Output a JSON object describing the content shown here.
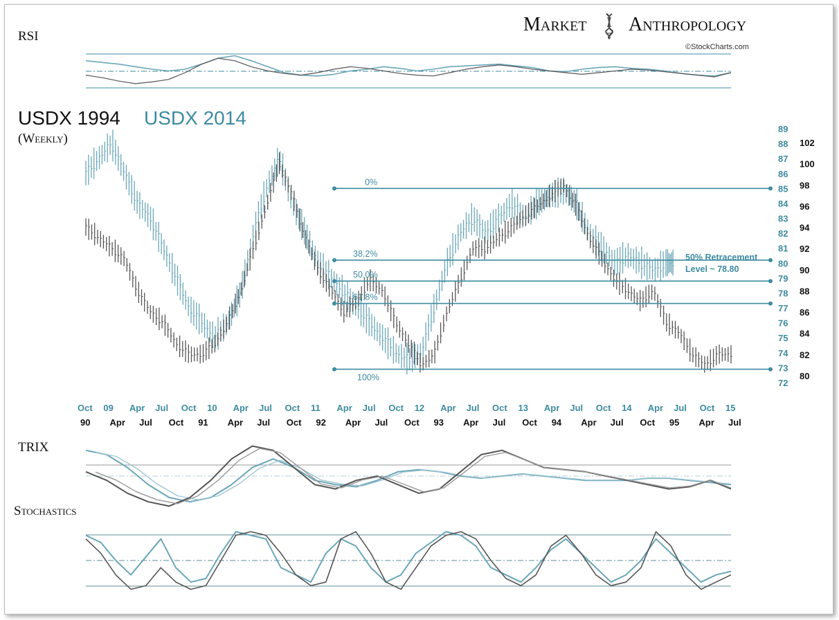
{
  "brand": {
    "name_left": "Market",
    "name_right": "Anthropology",
    "credit": "©StockCharts.com"
  },
  "chart_data": {
    "type": "line",
    "title_1994": "USDX 1994",
    "title_2014": "USDX 2014",
    "subtitle": "(Weekly)",
    "colors": {
      "series_1994": "#555555",
      "series_2014": "#6aa6b8",
      "accent": "#3d8ba0",
      "grid": "#3d8ba0"
    },
    "axis_2014_labels": [
      "89",
      "88",
      "87",
      "86",
      "85",
      "84",
      "83",
      "82",
      "81",
      "80",
      "79",
      "78",
      "77",
      "76",
      "75",
      "74",
      "73",
      "72"
    ],
    "axis_1994_labels": [
      "102",
      "100",
      "98",
      "96",
      "94",
      "92",
      "90",
      "88",
      "86",
      "84",
      "82",
      "80"
    ],
    "ylim_2014": [
      72,
      89
    ],
    "ylim_1994": [
      80,
      102
    ],
    "x_labels_2014": [
      "Oct",
      "09",
      "Apr",
      "Jul",
      "Oct",
      "10",
      "Apr",
      "Jul",
      "Oct",
      "11",
      "Apr",
      "Jul",
      "Oct",
      "12",
      "Apr",
      "Jul",
      "Oct",
      "13",
      "Apr",
      "Jul",
      "Oct",
      "14",
      "Apr",
      "Jul",
      "Oct",
      "15"
    ],
    "x_labels_1994": [
      "90",
      "Apr",
      "Jul",
      "Oct",
      "91",
      "Apr",
      "Jul",
      "Oct",
      "92",
      "Apr",
      "Jul",
      "Oct",
      "93",
      "Apr",
      "Jul",
      "Oct",
      "94",
      "Apr",
      "Jul",
      "Oct",
      "95",
      "Apr",
      "Jul"
    ],
    "fib_levels": [
      {
        "label": "0%",
        "value_2014": 85.0
      },
      {
        "label": "38.2%",
        "value_2014": 80.2
      },
      {
        "label": "50.0%",
        "value_2014": 78.8
      },
      {
        "label": "61.8%",
        "value_2014": 77.3
      },
      {
        "label": "100%",
        "value_2014": 72.9
      }
    ],
    "retracement_note_line1": "50% Retracement",
    "retracement_note_line2": "Level ~ 78.80",
    "series": [
      {
        "name": "USDX 1994 (weekly)",
        "axis": "right-1994",
        "x": [
          0,
          0.02,
          0.04,
          0.06,
          0.08,
          0.1,
          0.12,
          0.14,
          0.16,
          0.18,
          0.2,
          0.22,
          0.24,
          0.26,
          0.28,
          0.3,
          0.32,
          0.34,
          0.36,
          0.38,
          0.4,
          0.42,
          0.44,
          0.46,
          0.48,
          0.5,
          0.52,
          0.54,
          0.56,
          0.58,
          0.6,
          0.62,
          0.64,
          0.66,
          0.68,
          0.7,
          0.72,
          0.74,
          0.76,
          0.78,
          0.8,
          0.82,
          0.84,
          0.86,
          0.88,
          0.9,
          0.92,
          0.94,
          0.96,
          0.98,
          1.0
        ],
        "values": [
          94,
          93,
          92,
          91,
          88,
          86,
          85,
          83,
          82,
          82,
          83,
          85,
          88,
          92,
          96,
          100,
          97,
          93,
          90,
          88,
          86,
          87,
          89,
          88,
          85,
          83,
          81,
          82,
          86,
          89,
          92,
          92,
          93,
          94,
          95,
          96,
          97,
          98,
          96,
          93,
          91,
          89,
          88,
          87,
          88,
          85,
          84,
          82,
          81,
          82,
          82
        ]
      },
      {
        "name": "USDX 2014 (weekly)",
        "axis": "left-2014",
        "x": [
          0,
          0.02,
          0.04,
          0.06,
          0.08,
          0.1,
          0.12,
          0.14,
          0.16,
          0.18,
          0.2,
          0.22,
          0.24,
          0.26,
          0.28,
          0.3,
          0.32,
          0.34,
          0.36,
          0.38,
          0.4,
          0.42,
          0.44,
          0.46,
          0.48,
          0.5,
          0.52,
          0.54,
          0.56,
          0.58,
          0.6,
          0.62,
          0.64,
          0.66,
          0.68,
          0.7,
          0.72,
          0.74,
          0.76,
          0.78,
          0.8,
          0.82,
          0.84,
          0.86,
          0.88,
          0.9,
          0.91
        ],
        "values": [
          86,
          87,
          88,
          86,
          84,
          83,
          81,
          79,
          77,
          76,
          75,
          76,
          78,
          82,
          85,
          87,
          84,
          82,
          80,
          79,
          78,
          77,
          76,
          75,
          74,
          73.5,
          74,
          77,
          80,
          82,
          83,
          82,
          83,
          84,
          83,
          84,
          84.5,
          84.8,
          84,
          82,
          81,
          80,
          80.5,
          80,
          79.5,
          80,
          80
        ]
      }
    ],
    "rsi": {
      "label": "RSI",
      "series_1994": [
        45,
        42,
        38,
        35,
        37,
        40,
        48,
        58,
        65,
        62,
        55,
        50,
        47,
        45,
        48,
        52,
        55,
        53,
        50,
        47,
        45,
        44,
        48,
        52,
        55,
        57,
        55,
        52,
        50,
        48,
        46,
        48,
        50,
        52,
        51,
        49,
        47,
        45,
        43,
        48
      ],
      "series_2014": [
        62,
        60,
        58,
        55,
        52,
        50,
        52,
        58,
        65,
        68,
        62,
        55,
        48,
        45,
        44,
        46,
        50,
        52,
        55,
        53,
        50,
        52,
        55,
        56,
        57,
        58,
        56,
        54,
        50,
        49,
        52,
        54,
        55,
        53,
        52,
        50,
        47,
        45,
        44,
        48
      ]
    },
    "trix": {
      "label": "TRIX",
      "series_1994": [
        0.1,
        -0.1,
        -0.4,
        -0.6,
        -0.7,
        -0.5,
        -0.1,
        0.4,
        0.7,
        0.6,
        0.2,
        -0.2,
        -0.3,
        -0.1,
        0.0,
        -0.2,
        -0.4,
        -0.3,
        0.1,
        0.5,
        0.6,
        0.4,
        0.2,
        0.15,
        0.1,
        0.0,
        -0.1,
        -0.2,
        -0.3,
        -0.25,
        -0.1,
        -0.3
      ],
      "series_2014": [
        0.6,
        0.5,
        0.2,
        -0.2,
        -0.5,
        -0.6,
        -0.5,
        -0.2,
        0.2,
        0.4,
        0.2,
        -0.1,
        -0.2,
        -0.25,
        -0.1,
        0.1,
        0.15,
        0.1,
        0.0,
        -0.05,
        0.0,
        0.05,
        0.0,
        -0.05,
        -0.1,
        -0.1,
        -0.1,
        -0.05,
        -0.05,
        -0.1,
        -0.15,
        -0.2
      ]
    },
    "stochastics": {
      "label": "Stochastics",
      "series_1994": [
        80,
        60,
        30,
        10,
        15,
        40,
        20,
        10,
        15,
        50,
        85,
        90,
        85,
        60,
        30,
        15,
        20,
        80,
        90,
        60,
        20,
        10,
        40,
        70,
        85,
        90,
        80,
        50,
        25,
        15,
        30,
        70,
        85,
        60,
        30,
        15,
        20,
        40,
        90,
        70,
        30,
        10,
        20,
        30
      ],
      "series_2014": [
        85,
        75,
        50,
        30,
        55,
        80,
        40,
        20,
        25,
        60,
        90,
        85,
        80,
        40,
        30,
        20,
        60,
        80,
        70,
        40,
        20,
        30,
        60,
        75,
        90,
        85,
        70,
        40,
        30,
        20,
        40,
        65,
        80,
        60,
        40,
        20,
        30,
        50,
        80,
        60,
        40,
        20,
        30,
        35
      ]
    }
  }
}
